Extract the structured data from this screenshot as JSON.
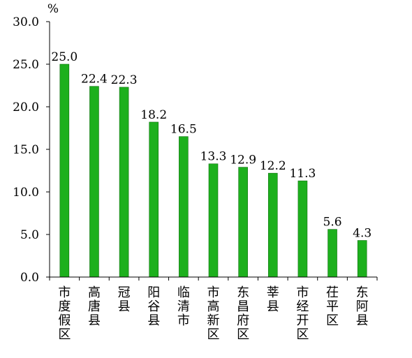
{
  "chart_data": {
    "type": "bar",
    "unit": "%",
    "categories": [
      "市度假区",
      "高唐县",
      "冠县",
      "阳谷县",
      "临清市",
      "市高新区",
      "东昌府区",
      "莘县",
      "市经开区",
      "茌平区",
      "东阿县"
    ],
    "values": [
      25.0,
      22.4,
      22.3,
      18.2,
      16.5,
      13.3,
      12.9,
      12.2,
      11.3,
      5.6,
      4.3
    ],
    "data_labels": [
      "25.0",
      "22.4",
      "22.3",
      "18.2",
      "16.5",
      "13.3",
      "12.9",
      "12.2",
      "11.3",
      "5.6",
      "4.3"
    ],
    "y_ticks": [
      0,
      5,
      10,
      15,
      20,
      25,
      30
    ],
    "y_tick_labels": [
      "0.0",
      "5.0",
      "10.0",
      "15.0",
      "20.0",
      "25.0",
      "30.0"
    ],
    "ylim": [
      0,
      30
    ],
    "grid": false,
    "legend": "none",
    "colors": {
      "bar": "#1db01d",
      "axis": "#000000"
    }
  }
}
